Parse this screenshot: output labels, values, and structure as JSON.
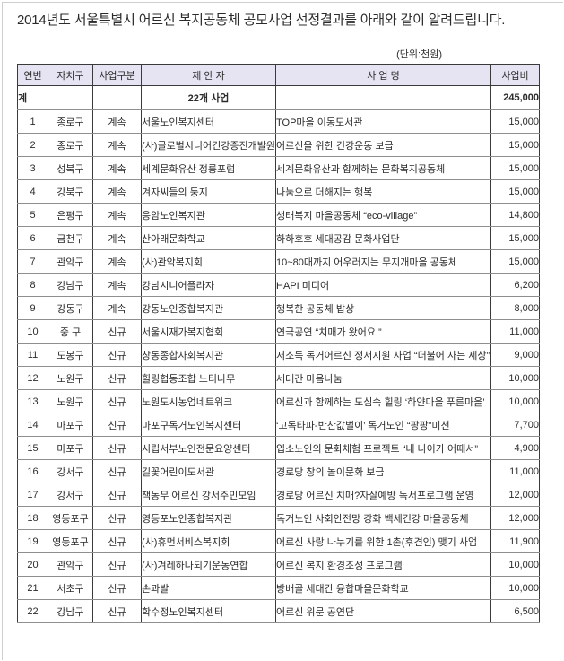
{
  "page": {
    "title": "2014년도 서울특별시 어르신 복지공동체 공모사업 선정결과를 아래와 같이 알려드립니다.",
    "unit_label": "(단위:천원)"
  },
  "colors": {
    "header_bg": "#e6e4f3",
    "border_dark": "#3a3a3a",
    "border_light": "#8f8f8f"
  },
  "table": {
    "headers": [
      "연번",
      "자치구",
      "사업구분",
      "제 안 자",
      "사 업 명",
      "사업비"
    ],
    "summary_row": {
      "label": "계",
      "district": "",
      "type": "",
      "proposer": "22개 사업",
      "project": "",
      "budget": "245,000"
    },
    "rows": [
      {
        "no": "1",
        "district": "종로구",
        "type": "계속",
        "proposer": "서울노인복지센터",
        "project": "TOP마을 이동도서관",
        "budget": "15,000"
      },
      {
        "no": "2",
        "district": "종로구",
        "type": "계속",
        "proposer": "(사)글로벌시니어건강증진개발원",
        "project": "어르신을 위한 건강운동 보급",
        "budget": "15,000"
      },
      {
        "no": "3",
        "district": "성북구",
        "type": "계속",
        "proposer": "세계문화유산 정릉포럼",
        "project": "세계문화유산과 함께하는 문화복지공동체",
        "budget": "15,000"
      },
      {
        "no": "4",
        "district": "강북구",
        "type": "계속",
        "proposer": "겨자씨들의 둥지",
        "project": "나눔으로 더해지는 행복",
        "budget": "15,000"
      },
      {
        "no": "5",
        "district": "은평구",
        "type": "계속",
        "proposer": "응암노인복지관",
        "project": "생태복지 마을공동체 “eco-village”",
        "budget": "14,800"
      },
      {
        "no": "6",
        "district": "금천구",
        "type": "계속",
        "proposer": "산아래문화학교",
        "project": "하하호호 세대공감 문화사업단",
        "budget": "15,000"
      },
      {
        "no": "7",
        "district": "관악구",
        "type": "계속",
        "proposer": "(사)관악복지회",
        "project": "10~80대까지 어우러지는 무지개마을 공동체",
        "budget": "15,000"
      },
      {
        "no": "8",
        "district": "강남구",
        "type": "계속",
        "proposer": "강남시니어플라자",
        "project": "HAPI 미디어",
        "budget": "6,200"
      },
      {
        "no": "9",
        "district": "강동구",
        "type": "계속",
        "proposer": "강동노인종합복지관",
        "project": "행복한 공동체 밥상",
        "budget": "8,000"
      },
      {
        "no": "10",
        "district": "중 구",
        "type": "신규",
        "proposer": "서울시재가복지협회",
        "project": "연극공연 “치매가 왔어요.”",
        "budget": "11,000"
      },
      {
        "no": "11",
        "district": "도봉구",
        "type": "신규",
        "proposer": "창동종합사회복지관",
        "project": "저소득 독거어르신 정서지원 사업 “더불어 사는 세상”",
        "budget": "9,000"
      },
      {
        "no": "12",
        "district": "노원구",
        "type": "신규",
        "proposer": "힐링협동조합 느티나무",
        "project": "세대간 마음나눔",
        "budget": "10,000"
      },
      {
        "no": "13",
        "district": "노원구",
        "type": "신규",
        "proposer": "노원도시농업네트워크",
        "project": "어르신과 함께하는 도심속 힐링 ‘하얀마을 푸른마을’",
        "budget": "10,000"
      },
      {
        "no": "14",
        "district": "마포구",
        "type": "신규",
        "proposer": "마포구독거노인복지센터",
        "project": "‘고독타파-반찬값벌이’ 독거노인 “팡팡”미션",
        "budget": "7,700"
      },
      {
        "no": "15",
        "district": "마포구",
        "type": "신규",
        "proposer": "시립서부노인전문요양센터",
        "project": "입소노인의 문화체험 프로젝트 “내 나이가 어때서”",
        "budget": "4,900"
      },
      {
        "no": "16",
        "district": "강서구",
        "type": "신규",
        "proposer": "길꽃어린이도서관",
        "project": "경로당 창의 놀이문화 보급",
        "budget": "11,000"
      },
      {
        "no": "17",
        "district": "강서구",
        "type": "신규",
        "proposer": "책동무 어르신 강서주민모임",
        "project": "경로당 어르신 치매?자살예방 독서프로그램 운영",
        "budget": "12,000"
      },
      {
        "no": "18",
        "district": "영등포구",
        "type": "신규",
        "proposer": "영등포노인종합복지관",
        "project": "독거노인 사회안전망 강화 백세건강 마을공동체",
        "budget": "12,000"
      },
      {
        "no": "19",
        "district": "영등포구",
        "type": "신규",
        "proposer": "(사)휴먼서비스복지회",
        "project": "어르신 사랑 나누기를 위한 1촌(후견인) 맺기 사업",
        "budget": "11,900"
      },
      {
        "no": "20",
        "district": "관악구",
        "type": "신규",
        "proposer": "(사)겨레하나되기운동연합",
        "project": "어르신 복지 환경조성 프로그램",
        "budget": "10,000"
      },
      {
        "no": "21",
        "district": "서초구",
        "type": "신규",
        "proposer": "손과발",
        "project": "방배골 세대간 융합마을문화학교",
        "budget": "10,000"
      },
      {
        "no": "22",
        "district": "강남구",
        "type": "신규",
        "proposer": "학수정노인복지센터",
        "project": "어르신 위문 공연단",
        "budget": "6,500"
      }
    ]
  }
}
